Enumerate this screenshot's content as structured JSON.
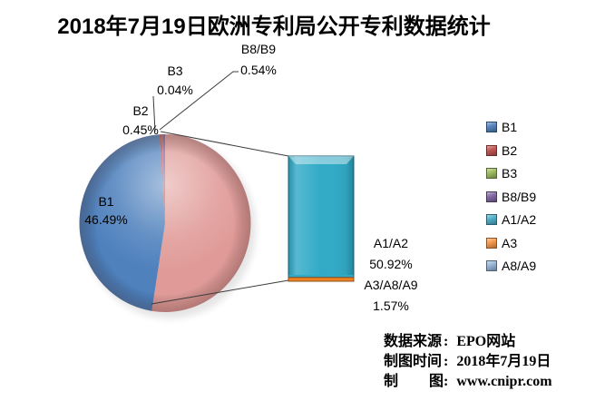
{
  "chart_data": {
    "type": "pie",
    "variant": "bar-of-pie",
    "title": "2018年7月19日欧洲专利局公开专利数据统计",
    "legend_position": "right",
    "pie_slices": [
      {
        "label": "B1",
        "value": 46.49,
        "display": "46.49%",
        "color": "#4F81BD"
      },
      {
        "label": "B2",
        "value": 0.45,
        "display": "0.45%",
        "color": "#C0504D"
      },
      {
        "label": "B3",
        "value": 0.04,
        "display": "0.04%",
        "color": "#9BBB59"
      },
      {
        "label": "B8/B9",
        "value": 0.54,
        "display": "0.54%",
        "color": "#8064A2"
      },
      {
        "label": "A1/A2 + A3/A8/A9",
        "value": 52.49,
        "display": "52.49%",
        "color": "#E09B98"
      }
    ],
    "bar_segments": [
      {
        "label": "A1/A2",
        "value": 50.92,
        "display": "50.92%",
        "color": "#31AAC7"
      },
      {
        "label": "A3/A8/A9",
        "value": 1.57,
        "display": "1.57%",
        "color": "#F08223"
      }
    ],
    "legend": {
      "items": [
        {
          "label": "B1",
          "color": "#4F81BD"
        },
        {
          "label": "B2",
          "color": "#C0504D"
        },
        {
          "label": "B3",
          "color": "#9BBB59"
        },
        {
          "label": "B8/B9",
          "color": "#8064A2"
        },
        {
          "label": "A1/A2",
          "color": "#4BACC6"
        },
        {
          "label": "A3",
          "color": "#F79646"
        },
        {
          "label": "A8/A9",
          "color": "#95B3D7"
        }
      ]
    }
  },
  "footer": {
    "colon": ":",
    "lines": [
      {
        "label": "数据来源",
        "value": "EPO网站"
      },
      {
        "label": "制图时间",
        "value": "2018年7月19日"
      },
      {
        "label": "制图",
        "value": "www.cnipr.com"
      }
    ]
  }
}
